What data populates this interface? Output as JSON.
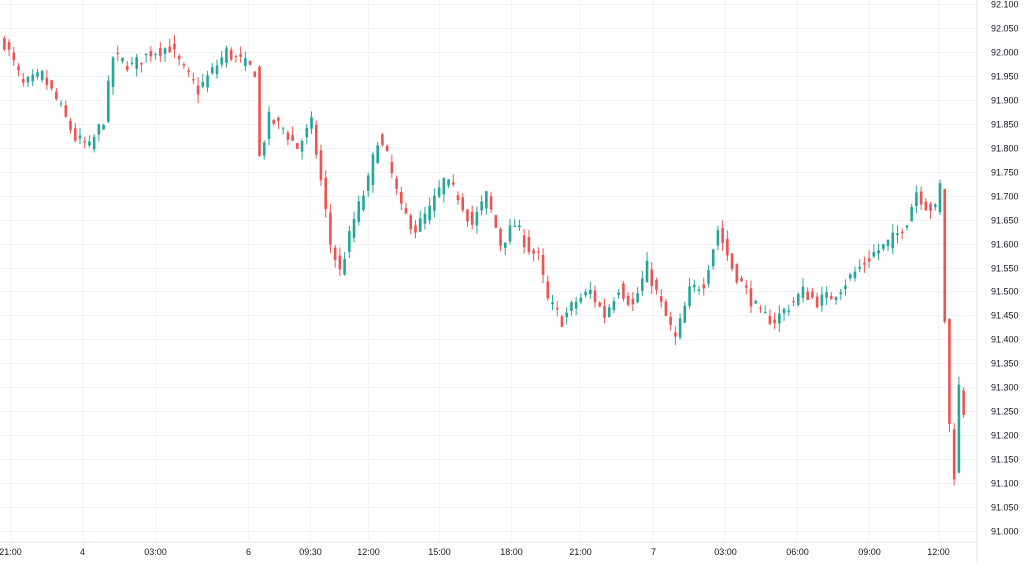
{
  "chart_data": {
    "type": "candlestick",
    "title": "",
    "xlabel": "",
    "ylabel": "",
    "ylim": [
      91.0,
      92.1
    ],
    "y_ticks": [
      "92.100",
      "92.050",
      "92.000",
      "91.950",
      "91.900",
      "91.850",
      "91.800",
      "91.750",
      "91.700",
      "91.650",
      "91.600",
      "91.550",
      "91.500",
      "91.450",
      "91.400",
      "91.350",
      "91.300",
      "91.250",
      "91.200",
      "91.150",
      "91.100",
      "91.050",
      "91.000"
    ],
    "x_ticks": [
      "21:00",
      "4",
      "03:00",
      "6",
      "09:30",
      "12:00",
      "15:00",
      "18:00",
      "21:00",
      "7",
      "03:00",
      "06:00",
      "09:00",
      "12:00"
    ],
    "grid": true,
    "colors": {
      "up": "#26a69a",
      "down": "#ef5350",
      "grid": "#f0f3fa",
      "axis": "#e0e3eb",
      "text": "#131722"
    },
    "close_path": [
      [
        0,
        92.02
      ],
      [
        4,
        91.93
      ],
      [
        8,
        91.95
      ],
      [
        11,
        91.9
      ],
      [
        15,
        91.82
      ],
      [
        18,
        91.8
      ],
      [
        21,
        91.86
      ],
      [
        23,
        91.99
      ],
      [
        27,
        91.97
      ],
      [
        31,
        92.0
      ],
      [
        35,
        92.01
      ],
      [
        38,
        91.96
      ],
      [
        41,
        91.92
      ],
      [
        44,
        91.96
      ],
      [
        47,
        92.0
      ],
      [
        50,
        91.98
      ],
      [
        53,
        91.96
      ],
      [
        54,
        91.78
      ],
      [
        56,
        91.86
      ],
      [
        59,
        91.84
      ],
      [
        62,
        91.8
      ],
      [
        65,
        91.85
      ],
      [
        67,
        91.73
      ],
      [
        69,
        91.6
      ],
      [
        71,
        91.54
      ],
      [
        74,
        91.65
      ],
      [
        77,
        91.73
      ],
      [
        79,
        91.82
      ],
      [
        81,
        91.78
      ],
      [
        84,
        91.67
      ],
      [
        87,
        91.63
      ],
      [
        90,
        91.67
      ],
      [
        93,
        91.73
      ],
      [
        96,
        91.7
      ],
      [
        99,
        91.64
      ],
      [
        102,
        91.7
      ],
      [
        105,
        91.6
      ],
      [
        108,
        91.64
      ],
      [
        111,
        91.59
      ],
      [
        113,
        91.57
      ],
      [
        115,
        91.48
      ],
      [
        118,
        91.44
      ],
      [
        121,
        91.48
      ],
      [
        124,
        91.5
      ],
      [
        127,
        91.45
      ],
      [
        130,
        91.51
      ],
      [
        133,
        91.47
      ],
      [
        136,
        91.55
      ],
      [
        139,
        91.47
      ],
      [
        142,
        91.4
      ],
      [
        145,
        91.5
      ],
      [
        148,
        91.52
      ],
      [
        151,
        91.63
      ],
      [
        154,
        91.55
      ],
      [
        157,
        91.5
      ],
      [
        160,
        91.45
      ],
      [
        163,
        91.44
      ],
      [
        166,
        91.47
      ],
      [
        169,
        91.5
      ],
      [
        172,
        91.48
      ],
      [
        175,
        91.49
      ],
      [
        178,
        91.52
      ],
      [
        181,
        91.55
      ],
      [
        184,
        91.58
      ],
      [
        187,
        91.6
      ],
      [
        189,
        91.62
      ],
      [
        191,
        91.65
      ],
      [
        193,
        91.71
      ],
      [
        195,
        91.68
      ],
      [
        197,
        91.67
      ],
      [
        198,
        91.72
      ],
      [
        199,
        91.44
      ],
      [
        200,
        91.22
      ],
      [
        201,
        91.12
      ],
      [
        202,
        91.3
      ],
      [
        203,
        91.25
      ]
    ]
  }
}
